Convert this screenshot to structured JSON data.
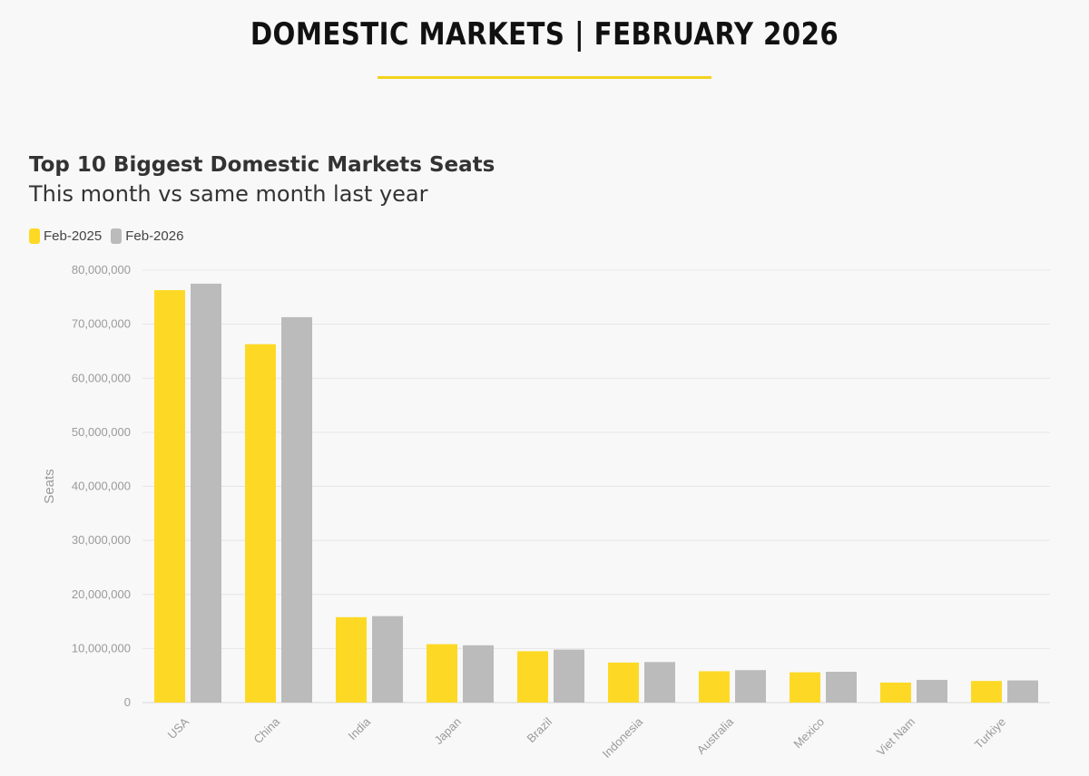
{
  "header": {
    "title": "DOMESTIC MARKETS | FEBRUARY 2026"
  },
  "colors": {
    "accent": "#f3d21c",
    "series_1": "#fdd925",
    "series_2": "#bbbbbb",
    "grid": "#e6e6e6"
  },
  "chart_data": {
    "type": "bar",
    "title": "Top 10 Biggest Domestic Markets Seats",
    "subtitle": "This month vs same month last year",
    "xlabel": "",
    "ylabel": "Seats",
    "ylim": [
      0,
      80000000
    ],
    "yticks": [
      0,
      10000000,
      20000000,
      30000000,
      40000000,
      50000000,
      60000000,
      70000000,
      80000000
    ],
    "ytick_labels": [
      "0",
      "10,000,000",
      "20,000,000",
      "30,000,000",
      "40,000,000",
      "50,000,000",
      "60,000,000",
      "70,000,000",
      "80,000,000"
    ],
    "grid": true,
    "legend_position": "top-left",
    "categories": [
      "USA",
      "China",
      "India",
      "Japan",
      "Brazil",
      "Indonesia",
      "Australia",
      "Mexico",
      "Viet Nam",
      "Turkiye"
    ],
    "series": [
      {
        "name": "Feb-2025",
        "color": "#fdd925",
        "values": [
          76300000,
          66300000,
          15800000,
          10800000,
          9500000,
          7400000,
          5800000,
          5600000,
          3700000,
          4000000
        ]
      },
      {
        "name": "Feb-2026",
        "color": "#bbbbbb",
        "values": [
          77500000,
          71300000,
          16000000,
          10600000,
          9800000,
          7500000,
          6000000,
          5700000,
          4200000,
          4100000
        ]
      }
    ]
  }
}
